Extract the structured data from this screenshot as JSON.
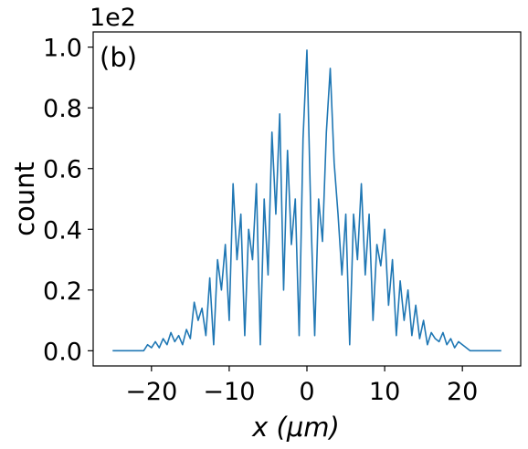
{
  "chart_data": {
    "type": "line",
    "title": "",
    "panel_label": "(b)",
    "xlabel": "x (μm)",
    "ylabel": "count",
    "y_offset_label": "1e2",
    "xlim": [
      -27.5,
      27.5
    ],
    "ylim": [
      -0.05,
      1.05
    ],
    "x_ticks": [
      -20,
      -10,
      0,
      10,
      20
    ],
    "x_tick_labels": [
      "−20",
      "−10",
      "0",
      "10",
      "20"
    ],
    "y_ticks": [
      0.0,
      0.2,
      0.4,
      0.6,
      0.8,
      1.0
    ],
    "y_tick_labels": [
      "0.0",
      "0.2",
      "0.4",
      "0.6",
      "0.8",
      "1.0"
    ],
    "grid": false,
    "series_color": "#1f77b4",
    "series": [
      {
        "x": [
          -25,
          -21,
          -20.5,
          -20,
          -19.5,
          -19,
          -18.5,
          -18,
          -17.5,
          -17,
          -16.5,
          -16,
          -15.5,
          -15,
          -14.5,
          -14,
          -13.5,
          -13,
          -12.5,
          -12,
          -11.5,
          -11,
          -10.5,
          -10,
          -9.5,
          -9,
          -8.5,
          -8,
          -7.5,
          -7,
          -6.5,
          -6,
          -5.5,
          -5,
          -4.5,
          -4,
          -3.5,
          -3,
          -2.5,
          -2,
          -1.5,
          -1,
          -0.5,
          0,
          0.5,
          1,
          1.5,
          2,
          2.5,
          3,
          3.5,
          4,
          4.5,
          5,
          5.5,
          6,
          6.5,
          7,
          7.5,
          8,
          8.5,
          9,
          9.5,
          10,
          10.5,
          11,
          11.5,
          12,
          12.5,
          13,
          13.5,
          14,
          14.5,
          15,
          15.5,
          16,
          16.5,
          17,
          17.5,
          18,
          18.5,
          19,
          19.5,
          20,
          21,
          25
        ],
        "y": [
          0.0,
          0.0,
          0.02,
          0.01,
          0.03,
          0.01,
          0.04,
          0.02,
          0.06,
          0.03,
          0.05,
          0.02,
          0.07,
          0.04,
          0.16,
          0.1,
          0.14,
          0.05,
          0.24,
          0.02,
          0.3,
          0.2,
          0.35,
          0.1,
          0.55,
          0.3,
          0.45,
          0.05,
          0.4,
          0.3,
          0.55,
          0.02,
          0.5,
          0.25,
          0.72,
          0.45,
          0.78,
          0.2,
          0.66,
          0.35,
          0.5,
          0.05,
          0.7,
          0.99,
          0.45,
          0.05,
          0.5,
          0.36,
          0.72,
          0.93,
          0.62,
          0.45,
          0.25,
          0.45,
          0.02,
          0.45,
          0.3,
          0.55,
          0.25,
          0.45,
          0.1,
          0.35,
          0.28,
          0.4,
          0.15,
          0.3,
          0.05,
          0.23,
          0.1,
          0.2,
          0.05,
          0.15,
          0.04,
          0.1,
          0.02,
          0.06,
          0.04,
          0.03,
          0.06,
          0.02,
          0.04,
          0.01,
          0.03,
          0.02,
          0.0,
          0.0
        ]
      }
    ]
  }
}
